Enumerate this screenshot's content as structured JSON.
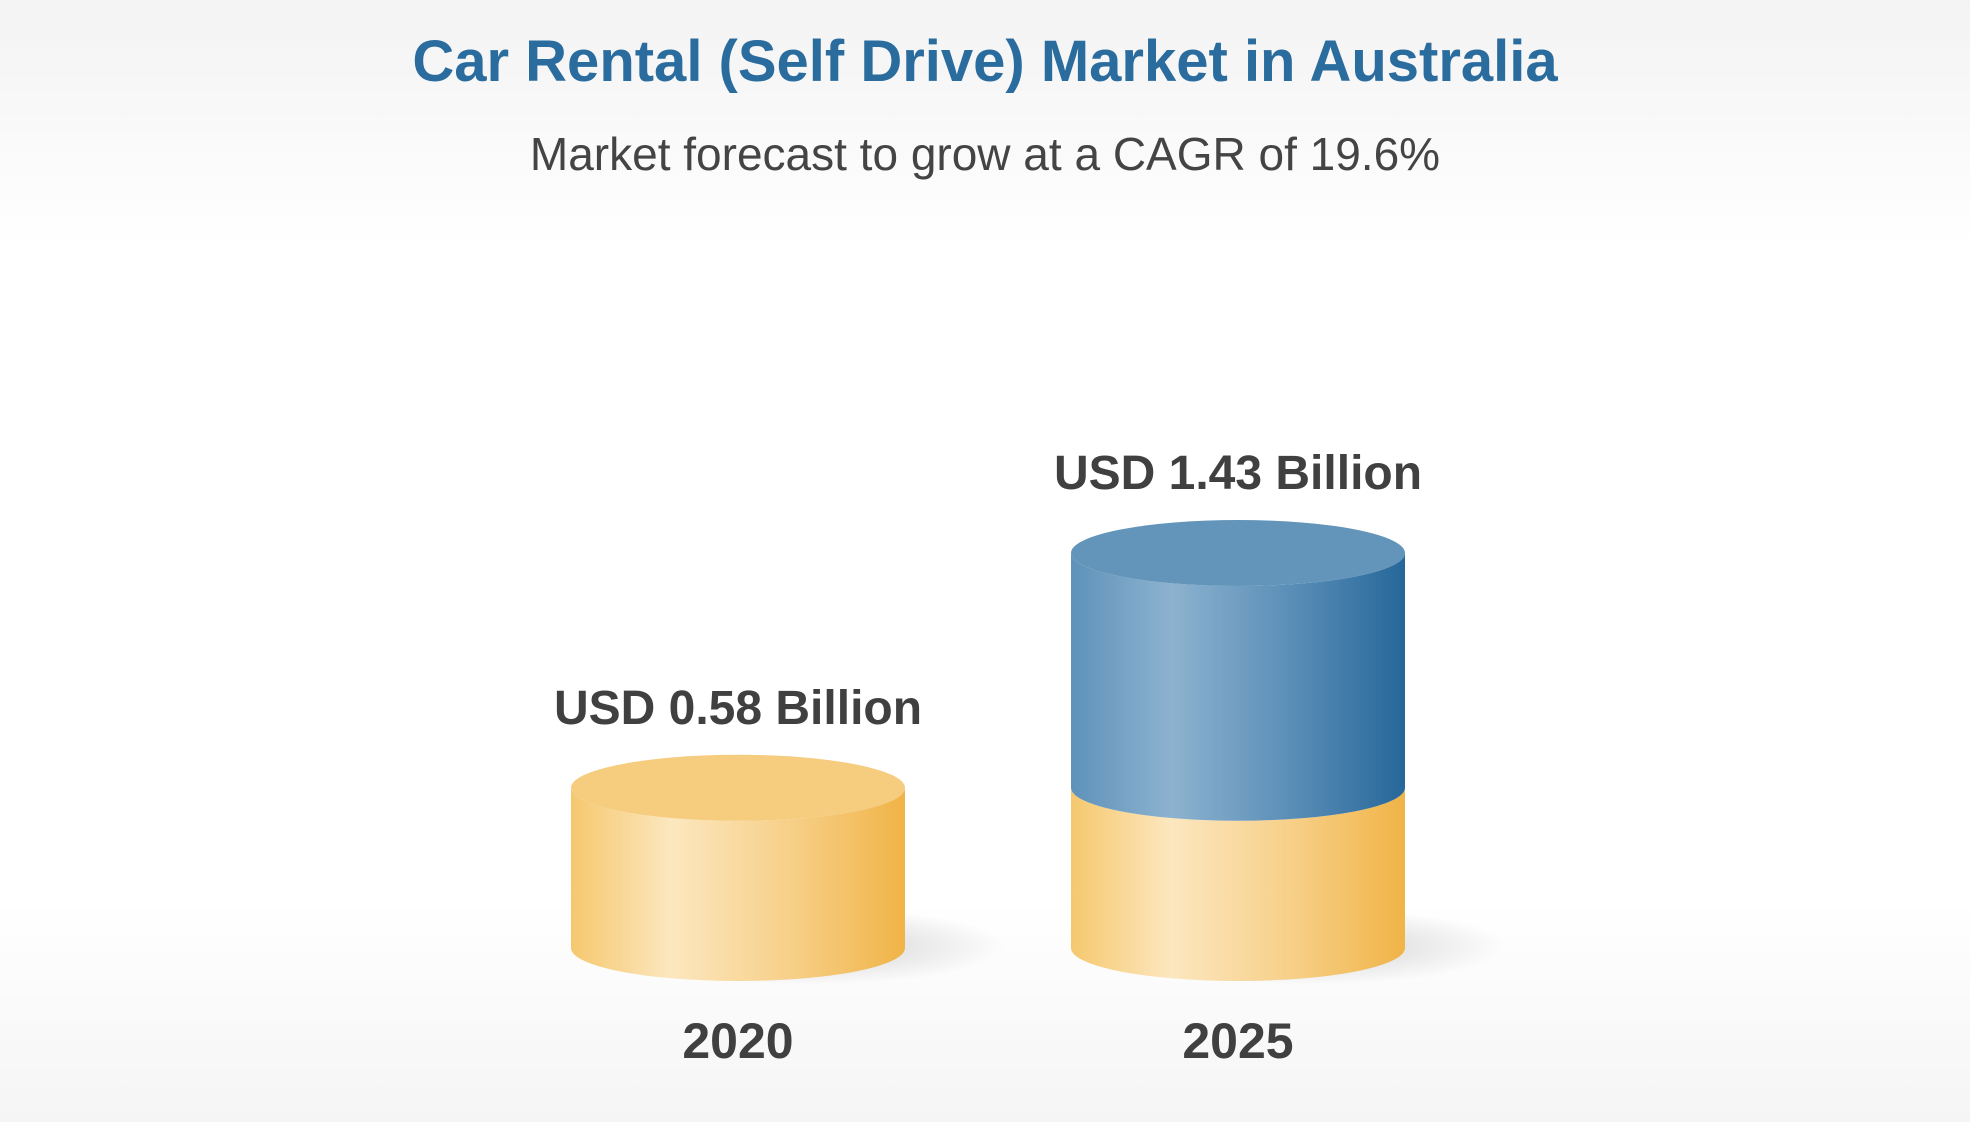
{
  "title": "Car Rental (Self Drive) Market in Australia",
  "subtitle": "Market forecast to grow at a CAGR of 19.6%",
  "chart_data": {
    "type": "bar",
    "title": "Car Rental (Self Drive) Market in Australia",
    "subtitle": "Market forecast to grow at a CAGR of 19.6%",
    "categories": [
      "2020",
      "2025"
    ],
    "values": [
      0.58,
      1.43
    ],
    "value_labels": [
      "USD 0.58 Billion",
      "USD 1.43 Billion"
    ],
    "unit": "USD Billion",
    "xlabel": "",
    "ylabel": "",
    "grid": false,
    "legend": "none",
    "colors": {
      "base": "#f2b84b",
      "growth": "#2a6d9e",
      "title": "#2b6c9e",
      "text": "#404040"
    }
  }
}
